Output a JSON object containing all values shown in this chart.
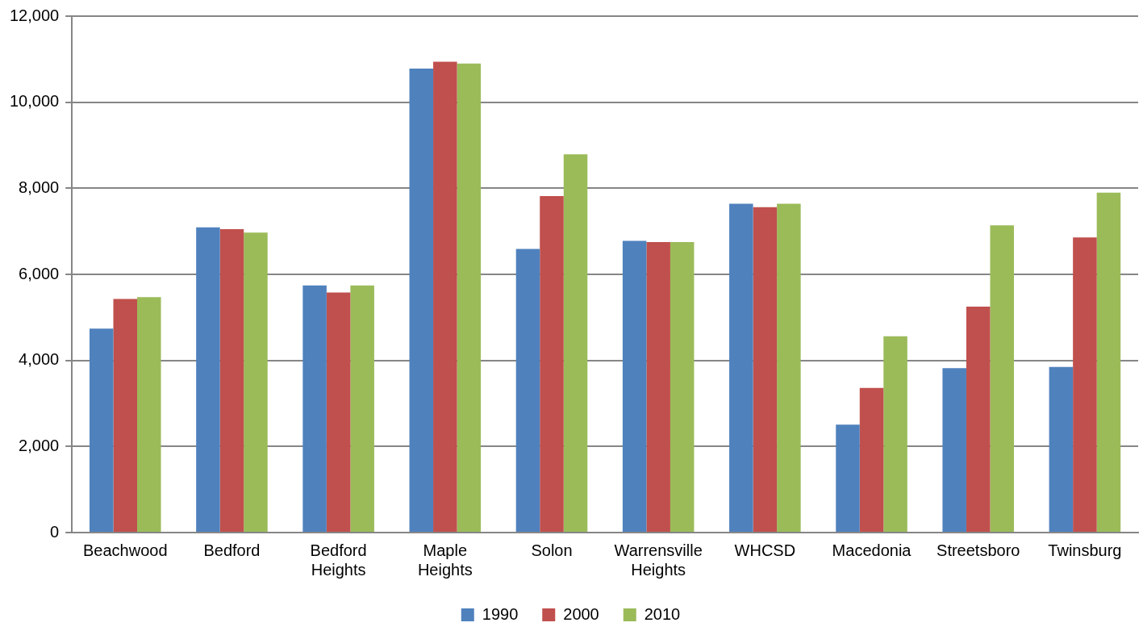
{
  "chart_data": {
    "type": "bar",
    "categories": [
      "Beachwood",
      "Bedford",
      "Bedford Heights",
      "Maple Heights",
      "Solon",
      "Warrensville Heights",
      "WHCSD",
      "Macedonia",
      "Streetsboro",
      "Twinsburg"
    ],
    "series": [
      {
        "name": "1990",
        "color": "#4f81bd",
        "values": [
          4740,
          7090,
          5740,
          10780,
          6590,
          6780,
          7640,
          2510,
          3820,
          3850
        ]
      },
      {
        "name": "2000",
        "color": "#c0504d",
        "values": [
          5430,
          7050,
          5580,
          10940,
          7820,
          6750,
          7560,
          3360,
          5250,
          6860
        ]
      },
      {
        "name": "2010",
        "color": "#9bbb59",
        "values": [
          5470,
          6970,
          5740,
          10900,
          8790,
          6750,
          7640,
          4560,
          7140,
          7900
        ]
      }
    ],
    "ylim": [
      0,
      12000
    ],
    "yticks": [
      {
        "value": 0,
        "label": "0"
      },
      {
        "value": 2000,
        "label": "2,000"
      },
      {
        "value": 4000,
        "label": "4,000"
      },
      {
        "value": 6000,
        "label": "6,000"
      },
      {
        "value": 8000,
        "label": "8,000"
      },
      {
        "value": 10000,
        "label": "10,000"
      },
      {
        "value": 12000,
        "label": "12,000"
      }
    ],
    "grid": "y",
    "legend": "bottom"
  }
}
